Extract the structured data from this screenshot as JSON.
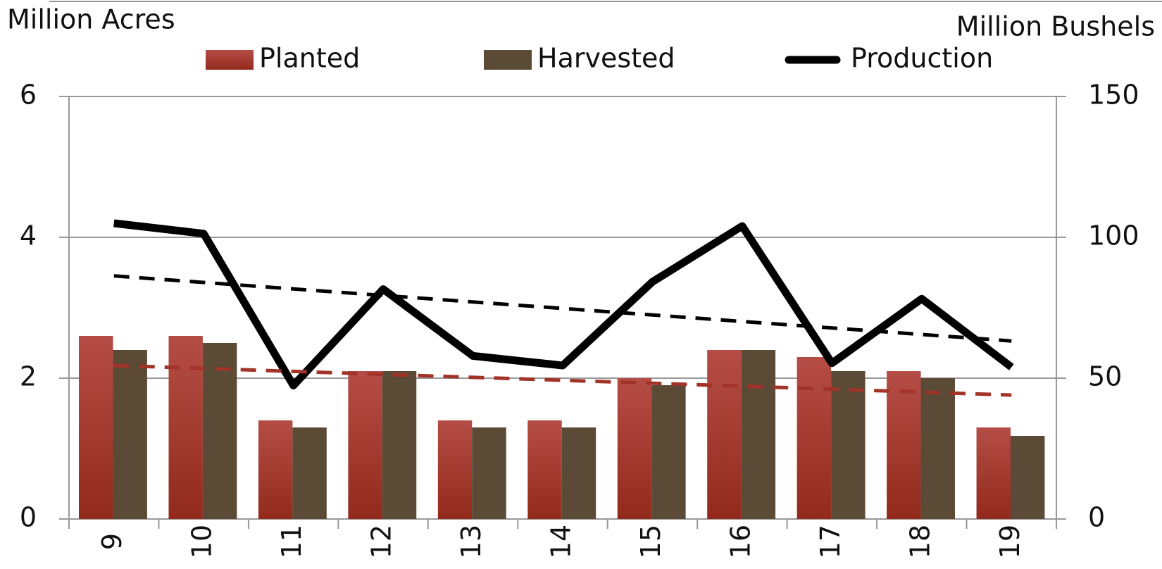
{
  "chart_data": {
    "type": "bar",
    "y_label": "Million Acres",
    "y2_label": "Million Bushels",
    "categories": [
      "9",
      "10",
      "11",
      "12",
      "13",
      "14",
      "15",
      "16",
      "17",
      "18",
      "19"
    ],
    "series": [
      {
        "name": "Planted",
        "color": "#a23328",
        "values": [
          2.6,
          2.6,
          1.4,
          2.1,
          1.4,
          1.4,
          2.0,
          2.4,
          2.3,
          2.1,
          1.3
        ]
      },
      {
        "name": "Harvested",
        "color": "#5a4a36",
        "values": [
          2.4,
          2.5,
          1.3,
          2.1,
          1.3,
          1.3,
          1.9,
          2.4,
          2.1,
          2.0,
          1.18
        ]
      },
      {
        "name": "Production",
        "type": "line",
        "axis": "y2",
        "color": "#000000",
        "values": [
          105,
          101.3,
          47.4,
          81.6,
          57.9,
          54.5,
          84.2,
          104,
          55.3,
          78.2,
          53.9
        ]
      }
    ],
    "trendlines": [
      {
        "axis": "y2",
        "color": "#000000",
        "values": [
          86.3,
          63.2
        ]
      },
      {
        "axis": "y",
        "color": "#a23328",
        "values": [
          2.18,
          1.76
        ]
      }
    ],
    "ylim": [
      0,
      6
    ],
    "yticks": [
      0,
      2,
      4,
      6
    ],
    "y2lim": [
      0,
      150
    ],
    "y2ticks": [
      0,
      50,
      100,
      150
    ],
    "grid": true
  }
}
